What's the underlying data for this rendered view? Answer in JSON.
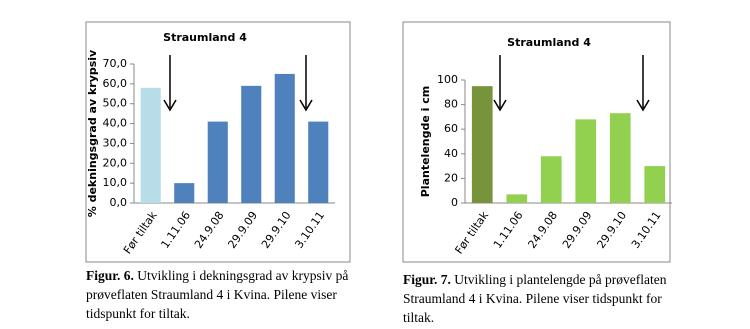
{
  "chart_data": [
    {
      "type": "bar",
      "title": "Straumland 4",
      "y_label": "% dekningsgrad av krypsiv",
      "categories": [
        "Før tiltak",
        "1.11.06",
        "24.9.08",
        "29.9.09",
        "29.9.10",
        "3.10.11"
      ],
      "values": [
        58,
        10,
        41,
        59,
        65,
        41
      ],
      "colors": [
        "#b7dde8",
        "#4f81bd",
        "#4f81bd",
        "#4f81bd",
        "#4f81bd",
        "#4f81bd"
      ],
      "ylim": [
        0,
        70
      ],
      "yticks": [
        {
          "value": 0,
          "label": "0,0"
        },
        {
          "value": 10,
          "label": "10,0"
        },
        {
          "value": 20,
          "label": "20,0"
        },
        {
          "value": 30,
          "label": "30,0"
        },
        {
          "value": 40,
          "label": "40,0"
        },
        {
          "value": 50,
          "label": "50,0"
        },
        {
          "value": 60,
          "label": "60,0"
        },
        {
          "value": 70,
          "label": "70,0"
        }
      ],
      "caption": {
        "label": "Figur. 6.",
        "lines": [
          "Utvikling i dekningsgrad av krypsiv på",
          "prøveflaten Straumland 4 i Kvina. Pilene viser",
          "tidspunkt for tiltak."
        ]
      }
    },
    {
      "type": "bar",
      "title": "Straumland 4",
      "y_label": "Plantelengde i cm",
      "categories": [
        "Før tiltak",
        "1.11.06",
        "24.9.08",
        "29.9.09",
        "29.9.10",
        "3.10.11"
      ],
      "values": [
        95,
        7,
        38,
        68,
        73,
        30
      ],
      "colors": [
        "#77933c",
        "#92d050",
        "#92d050",
        "#92d050",
        "#92d050",
        "#92d050"
      ],
      "ylim": [
        0,
        100
      ],
      "yticks": [
        0,
        20,
        40,
        60,
        80,
        100
      ],
      "caption": {
        "label": "Figur. 7.",
        "lines": [
          "Utvikling i plantelengde på prøveflaten",
          "Straumland 4 i Kvina. Pilene viser tidspunkt for",
          "tiltak."
        ]
      }
    }
  ]
}
